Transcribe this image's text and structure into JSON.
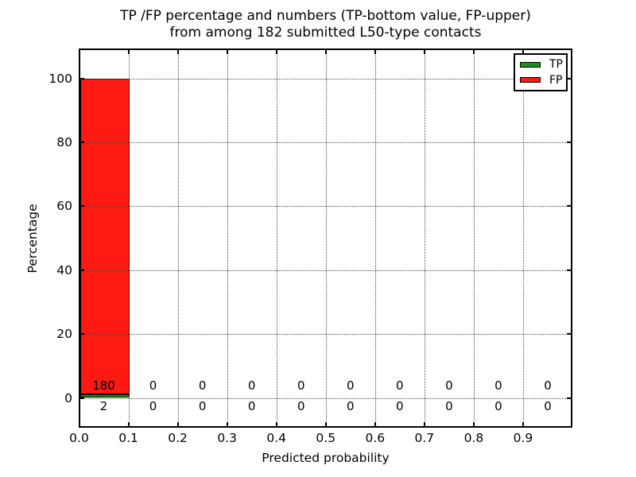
{
  "chart": {
    "title_line1": "TP /FP percentage and numbers (TP-bottom value, FP-upper)",
    "title_line2": "from among 182 submitted L50-type contacts",
    "xlabel": "Predicted probability",
    "ylabel": "Percentage"
  },
  "legend": {
    "position": "upper right",
    "items": [
      {
        "label": "TP",
        "color": "#1f8c1f"
      },
      {
        "label": "FP",
        "color": "#fc1a13"
      }
    ]
  },
  "chart_data": {
    "type": "bar",
    "stacked": true,
    "title": "TP /FP percentage and numbers (TP-bottom value, FP-upper) from among 182 submitted L50-type contacts",
    "xlabel": "Predicted probability",
    "ylabel": "Percentage",
    "total_submitted": 182,
    "categories": [
      "0.0-0.1",
      "0.1-0.2",
      "0.2-0.3",
      "0.3-0.4",
      "0.4-0.5",
      "0.5-0.6",
      "0.6-0.7",
      "0.7-0.8",
      "0.8-0.9",
      "0.9-1.0"
    ],
    "bin_centers": [
      0.05,
      0.15,
      0.25,
      0.35,
      0.45,
      0.55,
      0.65,
      0.75,
      0.85,
      0.95
    ],
    "x_tick_labels": [
      "0.0",
      "0.1",
      "0.2",
      "0.3",
      "0.4",
      "0.5",
      "0.6",
      "0.7",
      "0.8",
      "0.9"
    ],
    "y_tick_values": [
      0,
      20,
      40,
      60,
      80,
      100
    ],
    "xlim": [
      0.0,
      1.0
    ],
    "ylim": [
      -9.3,
      109.4
    ],
    "grid": true,
    "grid_style": "dotted",
    "legend_position": "upper right",
    "series": [
      {
        "name": "TP",
        "color": "#1f8c1f",
        "counts": [
          2,
          0,
          0,
          0,
          0,
          0,
          0,
          0,
          0,
          0
        ],
        "percentages": [
          1.1,
          0,
          0,
          0,
          0,
          0,
          0,
          0,
          0,
          0
        ]
      },
      {
        "name": "FP",
        "color": "#fc1a13",
        "counts": [
          180,
          0,
          0,
          0,
          0,
          0,
          0,
          0,
          0,
          0
        ],
        "percentages": [
          98.9,
          0,
          0,
          0,
          0,
          0,
          0,
          0,
          0,
          0
        ]
      }
    ]
  }
}
